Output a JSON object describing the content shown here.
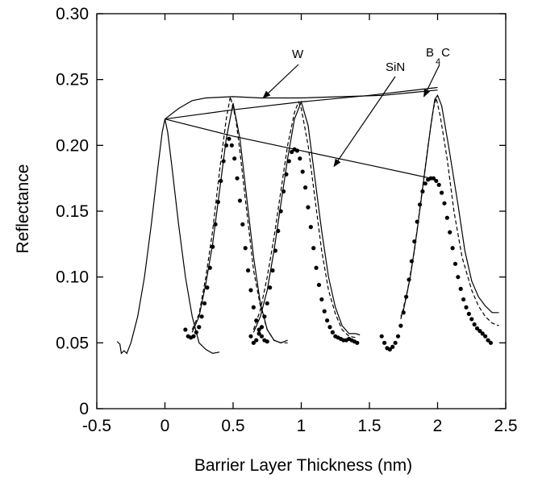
{
  "chart_data": {
    "type": "line",
    "title": "",
    "xlabel": "Barrier Layer Thickness (nm)",
    "ylabel": "Reflectance",
    "xlim": [
      -0.5,
      2.5
    ],
    "ylim": [
      0,
      0.3
    ],
    "x_ticks": [
      "-0.5",
      "0",
      "0.5",
      "1",
      "1.5",
      "2",
      "2.5"
    ],
    "y_ticks": [
      "0",
      "0.05",
      "0.10",
      "0.15",
      "0.20",
      "0.25",
      "0.30"
    ],
    "grid": false,
    "legend": "none",
    "annotations": [
      {
        "text": "W",
        "points_to": [
          0.72,
          0.236
        ]
      },
      {
        "text": "SiN",
        "points_to": [
          1.24,
          0.184
        ]
      },
      {
        "text": "B",
        "subscript": "4",
        "suffix": "C",
        "points_to": [
          1.9,
          0.237
        ]
      }
    ],
    "series": [
      {
        "style": "solid",
        "points": [
          [
            -0.35,
            0.051
          ],
          [
            -0.33,
            0.049
          ],
          [
            -0.32,
            0.042
          ],
          [
            -0.3,
            0.044
          ],
          [
            -0.28,
            0.042
          ],
          [
            -0.25,
            0.05
          ],
          [
            -0.2,
            0.07
          ],
          [
            -0.15,
            0.1
          ],
          [
            -0.1,
            0.14
          ],
          [
            -0.05,
            0.185
          ],
          [
            -0.02,
            0.21
          ],
          [
            0,
            0.22
          ],
          [
            0.02,
            0.21
          ],
          [
            0.05,
            0.185
          ],
          [
            0.1,
            0.14
          ],
          [
            0.15,
            0.1
          ],
          [
            0.2,
            0.07
          ],
          [
            0.25,
            0.05
          ],
          [
            0.3,
            0.045
          ],
          [
            0.35,
            0.042
          ],
          [
            0.4,
            0.043
          ]
        ]
      },
      {
        "style": "solid",
        "points": [
          [
            0.2,
            0.058
          ],
          [
            0.25,
            0.07
          ],
          [
            0.3,
            0.095
          ],
          [
            0.35,
            0.125
          ],
          [
            0.4,
            0.165
          ],
          [
            0.45,
            0.205
          ],
          [
            0.5,
            0.232
          ],
          [
            0.55,
            0.205
          ],
          [
            0.6,
            0.16
          ],
          [
            0.65,
            0.115
          ],
          [
            0.7,
            0.08
          ],
          [
            0.75,
            0.06
          ],
          [
            0.8,
            0.052
          ],
          [
            0.85,
            0.05
          ],
          [
            0.9,
            0.052
          ]
        ]
      },
      {
        "style": "solid",
        "points": [
          [
            0.65,
            0.058
          ],
          [
            0.7,
            0.07
          ],
          [
            0.75,
            0.09
          ],
          [
            0.8,
            0.12
          ],
          [
            0.85,
            0.155
          ],
          [
            0.9,
            0.19
          ],
          [
            0.95,
            0.22
          ],
          [
            1,
            0.233
          ],
          [
            1.05,
            0.215
          ],
          [
            1.1,
            0.175
          ],
          [
            1.15,
            0.135
          ],
          [
            1.2,
            0.1
          ],
          [
            1.25,
            0.077
          ],
          [
            1.3,
            0.063
          ],
          [
            1.35,
            0.057
          ],
          [
            1.4,
            0.057
          ],
          [
            1.43,
            0.056
          ]
        ]
      },
      {
        "style": "solid",
        "points": [
          [
            1.73,
            0.07
          ],
          [
            1.75,
            0.075
          ],
          [
            1.8,
            0.1
          ],
          [
            1.85,
            0.135
          ],
          [
            1.9,
            0.175
          ],
          [
            1.95,
            0.215
          ],
          [
            1.98,
            0.235
          ],
          [
            2,
            0.238
          ],
          [
            2.03,
            0.23
          ],
          [
            2.08,
            0.2
          ],
          [
            2.15,
            0.155
          ],
          [
            2.2,
            0.12
          ],
          [
            2.25,
            0.097
          ],
          [
            2.3,
            0.085
          ],
          [
            2.35,
            0.078
          ],
          [
            2.4,
            0.073
          ],
          [
            2.45,
            0.073
          ]
        ]
      },
      {
        "style": "dashed",
        "points": [
          [
            0.2,
            0.06
          ],
          [
            0.25,
            0.072
          ],
          [
            0.3,
            0.1
          ],
          [
            0.35,
            0.135
          ],
          [
            0.4,
            0.18
          ],
          [
            0.45,
            0.22
          ],
          [
            0.48,
            0.237
          ],
          [
            0.52,
            0.22
          ],
          [
            0.55,
            0.195
          ],
          [
            0.6,
            0.15
          ],
          [
            0.65,
            0.105
          ],
          [
            0.7,
            0.078
          ],
          [
            0.75,
            0.06
          ],
          [
            0.8,
            0.052
          ],
          [
            0.85,
            0.05
          ],
          [
            0.9,
            0.05
          ]
        ]
      },
      {
        "style": "dashed",
        "points": [
          [
            0.65,
            0.06
          ],
          [
            0.7,
            0.075
          ],
          [
            0.75,
            0.1
          ],
          [
            0.8,
            0.13
          ],
          [
            0.85,
            0.165
          ],
          [
            0.9,
            0.2
          ],
          [
            0.95,
            0.225
          ],
          [
            0.98,
            0.233
          ],
          [
            1,
            0.228
          ],
          [
            1.05,
            0.2
          ],
          [
            1.1,
            0.16
          ],
          [
            1.15,
            0.12
          ],
          [
            1.2,
            0.09
          ],
          [
            1.25,
            0.072
          ],
          [
            1.3,
            0.06
          ],
          [
            1.35,
            0.055
          ],
          [
            1.4,
            0.054
          ]
        ]
      },
      {
        "style": "dashed",
        "points": [
          [
            1.73,
            0.068
          ],
          [
            1.78,
            0.09
          ],
          [
            1.83,
            0.12
          ],
          [
            1.88,
            0.16
          ],
          [
            1.93,
            0.2
          ],
          [
            1.97,
            0.228
          ],
          [
            1.99,
            0.236
          ],
          [
            2.02,
            0.222
          ],
          [
            2.07,
            0.19
          ],
          [
            2.12,
            0.15
          ],
          [
            2.18,
            0.115
          ],
          [
            2.25,
            0.09
          ],
          [
            2.3,
            0.078
          ],
          [
            2.35,
            0.07
          ],
          [
            2.4,
            0.065
          ],
          [
            2.45,
            0.063
          ]
        ]
      },
      {
        "style": "dotted",
        "points": [
          [
            0.15,
            0.06
          ],
          [
            0.17,
            0.055
          ],
          [
            0.19,
            0.054
          ],
          [
            0.21,
            0.055
          ],
          [
            0.23,
            0.058
          ],
          [
            0.25,
            0.062
          ],
          [
            0.27,
            0.07
          ],
          [
            0.29,
            0.08
          ],
          [
            0.31,
            0.092
          ],
          [
            0.33,
            0.107
          ],
          [
            0.35,
            0.123
          ],
          [
            0.37,
            0.14
          ],
          [
            0.39,
            0.157
          ],
          [
            0.41,
            0.173
          ],
          [
            0.43,
            0.188
          ],
          [
            0.45,
            0.2
          ],
          [
            0.47,
            0.205
          ],
          [
            0.49,
            0.2
          ],
          [
            0.51,
            0.19
          ],
          [
            0.53,
            0.175
          ],
          [
            0.55,
            0.158
          ],
          [
            0.57,
            0.14
          ],
          [
            0.59,
            0.122
          ],
          [
            0.61,
            0.105
          ],
          [
            0.63,
            0.09
          ],
          [
            0.65,
            0.077
          ],
          [
            0.67,
            0.067
          ],
          [
            0.69,
            0.06
          ],
          [
            0.71,
            0.055
          ],
          [
            0.73,
            0.052
          ],
          [
            0.75,
            0.051
          ]
        ]
      },
      {
        "style": "dotted",
        "points": [
          [
            0.63,
            0.055
          ],
          [
            0.65,
            0.05
          ],
          [
            0.67,
            0.052
          ],
          [
            0.69,
            0.057
          ],
          [
            0.71,
            0.062
          ],
          [
            0.73,
            0.07
          ],
          [
            0.75,
            0.08
          ],
          [
            0.77,
            0.092
          ],
          [
            0.79,
            0.105
          ],
          [
            0.81,
            0.12
          ],
          [
            0.83,
            0.135
          ],
          [
            0.85,
            0.15
          ],
          [
            0.87,
            0.165
          ],
          [
            0.89,
            0.178
          ],
          [
            0.91,
            0.188
          ],
          [
            0.93,
            0.195
          ],
          [
            0.95,
            0.197
          ],
          [
            0.97,
            0.196
          ],
          [
            0.99,
            0.19
          ],
          [
            1.01,
            0.18
          ],
          [
            1.03,
            0.168
          ],
          [
            1.05,
            0.153
          ],
          [
            1.07,
            0.138
          ],
          [
            1.09,
            0.122
          ],
          [
            1.11,
            0.107
          ],
          [
            1.13,
            0.094
          ],
          [
            1.15,
            0.083
          ],
          [
            1.17,
            0.074
          ],
          [
            1.19,
            0.067
          ],
          [
            1.21,
            0.062
          ],
          [
            1.23,
            0.058
          ],
          [
            1.25,
            0.055
          ],
          [
            1.27,
            0.054
          ],
          [
            1.29,
            0.053
          ],
          [
            1.31,
            0.052
          ],
          [
            1.33,
            0.052
          ],
          [
            1.35,
            0.053
          ],
          [
            1.37,
            0.052
          ],
          [
            1.39,
            0.051
          ],
          [
            1.41,
            0.05
          ]
        ]
      },
      {
        "style": "dotted",
        "points": [
          [
            1.59,
            0.055
          ],
          [
            1.61,
            0.05
          ],
          [
            1.63,
            0.046
          ],
          [
            1.65,
            0.045
          ],
          [
            1.67,
            0.047
          ],
          [
            1.69,
            0.05
          ],
          [
            1.71,
            0.055
          ],
          [
            1.73,
            0.063
          ],
          [
            1.75,
            0.073
          ],
          [
            1.77,
            0.085
          ],
          [
            1.79,
            0.098
          ],
          [
            1.81,
            0.112
          ],
          [
            1.83,
            0.127
          ],
          [
            1.85,
            0.142
          ],
          [
            1.87,
            0.155
          ],
          [
            1.89,
            0.165
          ],
          [
            1.91,
            0.171
          ],
          [
            1.93,
            0.174
          ],
          [
            1.95,
            0.175
          ],
          [
            1.97,
            0.175
          ],
          [
            1.99,
            0.173
          ],
          [
            2.01,
            0.17
          ],
          [
            2.03,
            0.164
          ],
          [
            2.05,
            0.156
          ],
          [
            2.07,
            0.145
          ],
          [
            2.09,
            0.134
          ],
          [
            2.11,
            0.122
          ],
          [
            2.13,
            0.11
          ],
          [
            2.15,
            0.1
          ],
          [
            2.17,
            0.091
          ],
          [
            2.19,
            0.083
          ],
          [
            2.21,
            0.077
          ],
          [
            2.23,
            0.072
          ],
          [
            2.25,
            0.068
          ],
          [
            2.27,
            0.064
          ],
          [
            2.29,
            0.061
          ],
          [
            2.31,
            0.059
          ],
          [
            2.33,
            0.057
          ],
          [
            2.35,
            0.055
          ],
          [
            2.37,
            0.052
          ],
          [
            2.39,
            0.05
          ]
        ]
      },
      {
        "style": "solid",
        "name": "W envelope",
        "points": [
          [
            0,
            0.22
          ],
          [
            0.1,
            0.228
          ],
          [
            0.2,
            0.234
          ],
          [
            0.3,
            0.236
          ],
          [
            0.5,
            0.237
          ],
          [
            0.7,
            0.236
          ],
          [
            1,
            0.236
          ],
          [
            1.3,
            0.237
          ],
          [
            1.6,
            0.238
          ],
          [
            1.8,
            0.24
          ],
          [
            2,
            0.242
          ]
        ]
      },
      {
        "style": "solid",
        "name": "B4C envelope",
        "points": [
          [
            0,
            0.22
          ],
          [
            0.5,
            0.227
          ],
          [
            1,
            0.233
          ],
          [
            1.5,
            0.238
          ],
          [
            2,
            0.244
          ]
        ]
      },
      {
        "style": "solid",
        "name": "SiN envelope",
        "points": [
          [
            0,
            0.22
          ],
          [
            0.5,
            0.207
          ],
          [
            1,
            0.196
          ],
          [
            1.5,
            0.185
          ],
          [
            1.95,
            0.175
          ]
        ]
      }
    ]
  }
}
